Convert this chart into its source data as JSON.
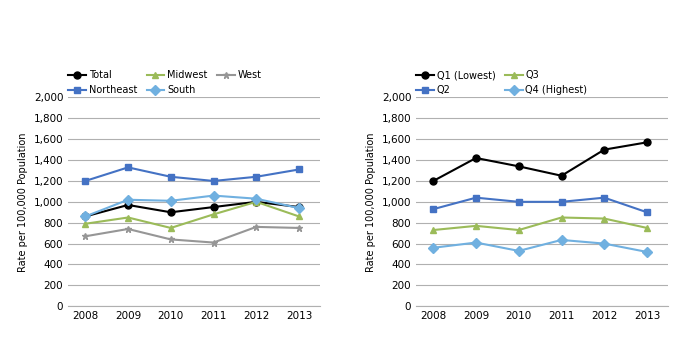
{
  "years": [
    2008,
    2009,
    2010,
    2011,
    2012,
    2013
  ],
  "left_chart": {
    "Total": [
      860,
      970,
      900,
      950,
      1000,
      950
    ],
    "Northeast": [
      1200,
      1330,
      1240,
      1200,
      1240,
      1310
    ],
    "Midwest": [
      790,
      850,
      750,
      880,
      1000,
      860
    ],
    "South": [
      860,
      1020,
      1010,
      1060,
      1030,
      940
    ],
    "West": [
      670,
      740,
      640,
      610,
      760,
      750
    ]
  },
  "right_chart": {
    "Q1 (Lowest)": [
      1200,
      1420,
      1340,
      1250,
      1500,
      1570
    ],
    "Q2": [
      930,
      1040,
      1000,
      1000,
      1040,
      900
    ],
    "Q3": [
      730,
      770,
      730,
      850,
      840,
      750
    ],
    "Q4 (Highest)": [
      560,
      610,
      530,
      635,
      600,
      520
    ]
  },
  "left_series_styles": {
    "Total": {
      "color": "#000000",
      "marker": "o",
      "linestyle": "-"
    },
    "Northeast": {
      "color": "#4472C4",
      "marker": "s",
      "linestyle": "-"
    },
    "Midwest": {
      "color": "#9BBB59",
      "marker": "^",
      "linestyle": "-"
    },
    "South": {
      "color": "#70B0E0",
      "marker": "D",
      "linestyle": "-"
    },
    "West": {
      "color": "#969696",
      "marker": "*",
      "linestyle": "-"
    }
  },
  "right_series_styles": {
    "Q1 (Lowest)": {
      "color": "#000000",
      "marker": "o",
      "linestyle": "-"
    },
    "Q2": {
      "color": "#4472C4",
      "marker": "s",
      "linestyle": "-"
    },
    "Q3": {
      "color": "#9BBB59",
      "marker": "^",
      "linestyle": "-"
    },
    "Q4 (Highest)": {
      "color": "#70B0E0",
      "marker": "D",
      "linestyle": "-"
    }
  },
  "ylabel": "Rate per 100,000 Population",
  "ylim": [
    0,
    2000
  ],
  "yticks": [
    0,
    200,
    400,
    600,
    800,
    1000,
    1200,
    1400,
    1600,
    1800,
    2000
  ],
  "background_color": "#ffffff",
  "grid_color": "#b0b0b0"
}
